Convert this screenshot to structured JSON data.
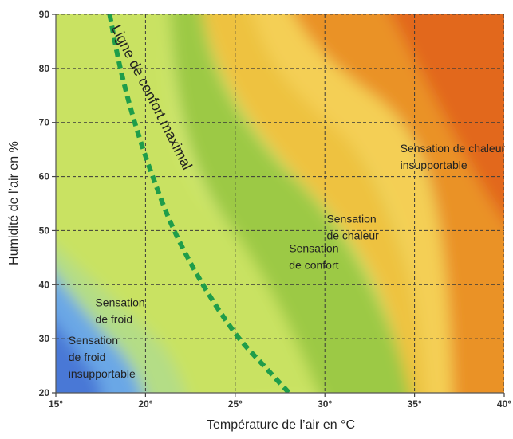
{
  "chart_data": {
    "type": "heatmap",
    "title": "",
    "xlabel": "Température de l’air en °C",
    "ylabel": "Humidité de l’air en %",
    "xlim": [
      15,
      40
    ],
    "ylim": [
      20,
      90
    ],
    "grid": true,
    "x_ticks": [
      "15°",
      "20°",
      "25°",
      "30°",
      "35°",
      "40°"
    ],
    "y_ticks": [
      "20",
      "30",
      "40",
      "50",
      "60",
      "70",
      "80",
      "90"
    ],
    "x_tick_values": [
      15,
      20,
      25,
      30,
      35,
      40
    ],
    "y_tick_values": [
      20,
      30,
      40,
      50,
      60,
      70,
      80,
      90
    ],
    "comfort_line": {
      "label": "Ligne de confort maximal",
      "points": [
        [
          18.0,
          90
        ],
        [
          18.6,
          80
        ],
        [
          19.4,
          70
        ],
        [
          20.4,
          60
        ],
        [
          21.6,
          50
        ],
        [
          23.2,
          40
        ],
        [
          25.0,
          31
        ],
        [
          26.6,
          25
        ],
        [
          28.0,
          20
        ]
      ]
    },
    "zones": [
      {
        "lines": [
          "Sensation de chaleur",
          "insupportable"
        ],
        "at": [
          34.2,
          64.5
        ],
        "color": "#e9831e"
      },
      {
        "lines": [
          "Sensation",
          "de chaleur"
        ],
        "at": [
          30.1,
          51.5
        ],
        "color": "#f3bd3d"
      },
      {
        "lines": [
          "Sensation",
          "de confort"
        ],
        "at": [
          28.0,
          46.0
        ],
        "color": "#8fc23f"
      },
      {
        "lines": [
          "Sensation",
          "de froid"
        ],
        "at": [
          17.2,
          36.0
        ],
        "color": "#d4e86a"
      },
      {
        "lines": [
          "Sensation",
          "de froid",
          "insupportable"
        ],
        "at": [
          15.7,
          29.0
        ],
        "color": "#4f8fd9"
      }
    ]
  }
}
